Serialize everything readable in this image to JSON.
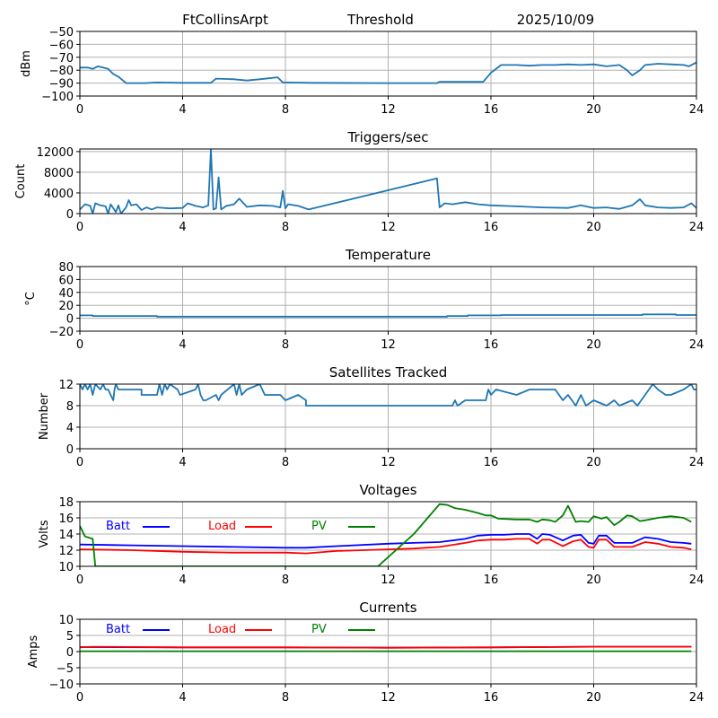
{
  "header": {
    "station": "FtCollinsArpt",
    "label": "Threshold",
    "date": "2025/10/09"
  },
  "colors": {
    "series_default": "#1f77b4",
    "batt": "#0000ff",
    "load": "#ff0000",
    "pv": "#008000",
    "grid": "#b0b0b0"
  },
  "chart_data": [
    {
      "id": "threshold",
      "type": "line",
      "title": "",
      "xlabel": "",
      "ylabel": "dBm",
      "xlim": [
        0,
        24
      ],
      "ylim": [
        -100,
        -50
      ],
      "xticks": [
        0,
        4,
        8,
        12,
        16,
        20,
        24
      ],
      "yticks": [
        -100,
        -90,
        -80,
        -70,
        -60,
        -50
      ],
      "ytick_labels": [
        "−100",
        "−90",
        "−80",
        "−70",
        "−60",
        "−50"
      ],
      "grid": true,
      "series": [
        {
          "name": "Threshold",
          "color": "#1f77b4",
          "x": [
            0,
            0.3,
            0.5,
            0.7,
            0.9,
            1.1,
            1.3,
            1.5,
            1.8,
            2.0,
            2.5,
            3.0,
            4.0,
            5.1,
            5.3,
            6.0,
            6.5,
            7.0,
            7.7,
            7.9,
            8.1,
            9.0,
            12.0,
            13.9,
            14.0,
            15.0,
            15.7,
            16.0,
            16.4,
            17.0,
            17.5,
            18.0,
            18.5,
            19.0,
            19.5,
            20.0,
            20.5,
            21.0,
            21.3,
            21.5,
            21.8,
            22.0,
            22.5,
            23.0,
            23.5,
            23.7,
            24.0
          ],
          "y": [
            -78,
            -78,
            -79,
            -77,
            -78,
            -79,
            -83,
            -85,
            -90,
            -90,
            -90,
            -89.5,
            -89.8,
            -89.8,
            -86.5,
            -87,
            -88,
            -87,
            -85.5,
            -89.5,
            -89.5,
            -89.8,
            -90,
            -90,
            -89,
            -89,
            -89,
            -82,
            -76,
            -76,
            -76.5,
            -76,
            -76,
            -75.5,
            -76,
            -75.5,
            -77,
            -76,
            -80,
            -84,
            -80,
            -76,
            -75,
            -75.5,
            -76,
            -77,
            -74
          ]
        }
      ]
    },
    {
      "id": "triggers",
      "type": "line",
      "title": "Triggers/sec",
      "xlabel": "",
      "ylabel": "Count",
      "xlim": [
        0,
        24
      ],
      "ylim": [
        0,
        12500
      ],
      "xticks": [
        0,
        4,
        8,
        12,
        16,
        20,
        24
      ],
      "yticks": [
        0,
        4000,
        8000,
        12000
      ],
      "ytick_labels": [
        "0",
        "4000",
        "8000",
        "12000"
      ],
      "grid": true,
      "series": [
        {
          "name": "Triggers",
          "color": "#1f77b4",
          "x": [
            0,
            0.2,
            0.4,
            0.5,
            0.6,
            0.8,
            1.0,
            1.1,
            1.2,
            1.4,
            1.5,
            1.6,
            1.8,
            1.9,
            2.0,
            2.2,
            2.4,
            2.6,
            2.8,
            3.0,
            3.5,
            4.0,
            4.2,
            4.5,
            4.8,
            5.0,
            5.1,
            5.2,
            5.3,
            5.4,
            5.5,
            5.7,
            6.0,
            6.2,
            6.5,
            7.0,
            7.5,
            7.8,
            7.9,
            8.0,
            8.1,
            8.5,
            8.9,
            13.9,
            14.0,
            14.2,
            14.5,
            15.0,
            15.5,
            16.0,
            17.0,
            18.0,
            19.0,
            19.5,
            20.0,
            20.5,
            21.0,
            21.5,
            21.8,
            22.0,
            22.5,
            23.0,
            23.5,
            23.8,
            24.0
          ],
          "y": [
            800,
            1800,
            1500,
            0,
            2000,
            1600,
            1400,
            0,
            1800,
            300,
            1600,
            0,
            1200,
            2600,
            1600,
            1800,
            700,
            1200,
            800,
            1200,
            1000,
            1100,
            2000,
            1500,
            1200,
            1600,
            12500,
            800,
            1000,
            7000,
            800,
            1500,
            1800,
            2900,
            1300,
            1600,
            1500,
            1200,
            4400,
            1000,
            1800,
            1500,
            800,
            6800,
            1200,
            2000,
            1800,
            2200,
            1800,
            1600,
            1400,
            1200,
            1100,
            1600,
            1100,
            1200,
            900,
            1600,
            2800,
            1600,
            1200,
            1100,
            1200,
            2000,
            1100
          ]
        }
      ]
    },
    {
      "id": "temperature",
      "type": "line",
      "title": "Temperature",
      "xlabel": "",
      "ylabel": "°C",
      "xlim": [
        0,
        24
      ],
      "ylim": [
        -20,
        80
      ],
      "xticks": [
        0,
        4,
        8,
        12,
        16,
        20,
        24
      ],
      "yticks": [
        -20,
        0,
        20,
        40,
        60,
        80
      ],
      "ytick_labels": [
        "−20",
        "0",
        "20",
        "40",
        "60",
        "80"
      ],
      "grid": true,
      "series": [
        {
          "name": "Temperature",
          "color": "#1f77b4",
          "x": [
            0,
            0.5,
            0.5,
            3.0,
            3.0,
            14.3,
            14.3,
            15.1,
            15.1,
            16.4,
            16.4,
            21.9,
            21.9,
            23.2,
            23.2,
            24.0
          ],
          "y": [
            4.5,
            4.5,
            3.5,
            3.5,
            2.5,
            2.5,
            3.5,
            3.5,
            4.5,
            4.5,
            5.0,
            5.0,
            6.0,
            6.0,
            5.0,
            5.0
          ]
        }
      ]
    },
    {
      "id": "satellites",
      "type": "line",
      "title": "Satellites Tracked",
      "xlabel": "",
      "ylabel": "Number",
      "xlim": [
        0,
        24
      ],
      "ylim": [
        0,
        12
      ],
      "xticks": [
        0,
        4,
        8,
        12,
        16,
        20,
        24
      ],
      "yticks": [
        0,
        4,
        8,
        12
      ],
      "ytick_labels": [
        "0",
        "4",
        "8",
        "12"
      ],
      "grid": true,
      "series": [
        {
          "name": "Satellites",
          "color": "#1f77b4",
          "x": [
            0,
            0.1,
            0.2,
            0.3,
            0.4,
            0.5,
            0.6,
            0.8,
            0.9,
            1.0,
            1.1,
            1.2,
            1.3,
            1.35,
            1.4,
            1.5,
            1.6,
            2.4,
            2.4,
            3.0,
            3.1,
            3.2,
            3.3,
            3.4,
            3.5,
            3.8,
            3.9,
            4.5,
            4.6,
            4.7,
            4.8,
            4.9,
            5.3,
            5.4,
            5.5,
            6.0,
            6.1,
            6.2,
            6.3,
            6.5,
            7.0,
            7.1,
            7.2,
            7.8,
            8.0,
            8.5,
            8.8,
            8.8,
            14.0,
            14.5,
            14.6,
            14.7,
            15.0,
            15.1,
            15.8,
            15.9,
            16.0,
            16.2,
            17.0,
            17.5,
            17.8,
            18.5,
            18.8,
            19.0,
            19.3,
            19.5,
            19.6,
            19.7,
            20.0,
            20.5,
            20.8,
            21.0,
            21.5,
            21.7,
            22.0,
            22.3,
            22.5,
            22.8,
            23.0,
            23.5,
            23.8,
            23.9,
            24.0
          ],
          "y": [
            12,
            11,
            12,
            11,
            12,
            10,
            12,
            11,
            12,
            11,
            11,
            10,
            9,
            11,
            12,
            11,
            11,
            11,
            10,
            10,
            12,
            10,
            12,
            11,
            12,
            11,
            10,
            11,
            12,
            10,
            9,
            9,
            10,
            9,
            10,
            12,
            10,
            12,
            10,
            11,
            12,
            11,
            10,
            10,
            9,
            10,
            9,
            8,
            8,
            8,
            9,
            8,
            9,
            9,
            9,
            11,
            10,
            11,
            10,
            11,
            11,
            11,
            9,
            10,
            8,
            10,
            9,
            8,
            9,
            8,
            9,
            8,
            9,
            8,
            10,
            12,
            11,
            10,
            10,
            11,
            12,
            11,
            11
          ]
        }
      ]
    },
    {
      "id": "voltages",
      "type": "line",
      "title": "Voltages",
      "xlabel": "",
      "ylabel": "Volts",
      "xlim": [
        0,
        24
      ],
      "ylim": [
        10,
        18
      ],
      "xticks": [
        0,
        4,
        8,
        12,
        16,
        20,
        24
      ],
      "yticks": [
        10,
        12,
        14,
        16,
        18
      ],
      "ytick_labels": [
        "10",
        "12",
        "14",
        "16",
        "18"
      ],
      "grid": true,
      "legend": "top-left, inline",
      "series": [
        {
          "name": "Batt",
          "color": "#0000ff",
          "x": [
            0,
            2,
            4,
            6,
            8,
            8.8,
            10,
            12,
            13,
            14,
            15,
            15.5,
            16,
            16.5,
            17,
            17.5,
            17.8,
            18,
            18.3,
            18.8,
            19.2,
            19.5,
            19.8,
            20.0,
            20.2,
            20.5,
            20.8,
            21.0,
            21.5,
            22,
            22.5,
            23,
            23.5,
            23.8
          ],
          "y": [
            12.7,
            12.6,
            12.5,
            12.4,
            12.3,
            12.3,
            12.5,
            12.8,
            12.9,
            13.0,
            13.4,
            13.8,
            13.9,
            13.9,
            14.0,
            14.0,
            13.4,
            14.0,
            13.9,
            13.2,
            13.8,
            13.9,
            12.9,
            12.8,
            13.8,
            13.8,
            12.9,
            12.9,
            12.9,
            13.6,
            13.4,
            13.0,
            12.9,
            12.8
          ]
        },
        {
          "name": "Load",
          "color": "#ff0000",
          "x": [
            0,
            2,
            4,
            6,
            8,
            8.8,
            10,
            12,
            13,
            14,
            15,
            15.5,
            16,
            16.5,
            17,
            17.5,
            17.8,
            18,
            18.3,
            18.8,
            19.2,
            19.5,
            19.8,
            20.0,
            20.2,
            20.5,
            20.8,
            21.0,
            21.5,
            22,
            22.5,
            23,
            23.5,
            23.8
          ],
          "y": [
            12.1,
            12.0,
            11.8,
            11.7,
            11.7,
            11.6,
            11.9,
            12.1,
            12.2,
            12.4,
            12.9,
            13.2,
            13.3,
            13.3,
            13.4,
            13.4,
            12.8,
            13.3,
            13.3,
            12.5,
            13.1,
            13.3,
            12.4,
            12.3,
            13.3,
            13.3,
            12.4,
            12.4,
            12.4,
            13.0,
            12.8,
            12.4,
            12.3,
            12.1
          ]
        },
        {
          "name": "PV",
          "color": "#008000",
          "x": [
            0,
            0.2,
            0.4,
            0.5,
            0.6,
            11.6,
            13.0,
            14.0,
            14.3,
            14.6,
            15.0,
            15.5,
            15.8,
            16.0,
            16.3,
            17.0,
            17.5,
            17.8,
            18.0,
            18.3,
            18.5,
            18.8,
            19.0,
            19.3,
            19.5,
            19.8,
            20.0,
            20.3,
            20.5,
            20.8,
            21.0,
            21.3,
            21.5,
            21.8,
            22.0,
            22.5,
            23.0,
            23.5,
            23.8
          ],
          "y": [
            15.0,
            13.7,
            13.5,
            13.4,
            10.0,
            10.0,
            14.0,
            17.7,
            17.6,
            17.2,
            17.0,
            16.6,
            16.3,
            16.3,
            15.9,
            15.8,
            15.8,
            15.5,
            15.8,
            15.7,
            15.5,
            16.3,
            17.5,
            15.5,
            15.6,
            15.5,
            16.2,
            15.9,
            16.1,
            15.1,
            15.5,
            16.3,
            16.2,
            15.6,
            15.7,
            16.0,
            16.2,
            16.0,
            15.5
          ]
        }
      ]
    },
    {
      "id": "currents",
      "type": "line",
      "title": "Currents",
      "xlabel": "",
      "ylabel": "Amps",
      "xlim": [
        0,
        24
      ],
      "ylim": [
        -10,
        10
      ],
      "xticks": [
        0,
        4,
        8,
        12,
        16,
        20,
        24
      ],
      "yticks": [
        -10,
        -5,
        0,
        5,
        10
      ],
      "ytick_labels": [
        "−10",
        "−5",
        "0",
        "5",
        "10"
      ],
      "grid": true,
      "legend": "top-left, inline",
      "series": [
        {
          "name": "Batt",
          "color": "#0000ff",
          "x": [
            0,
            4,
            8,
            12,
            16,
            20,
            23.8
          ],
          "y": [
            1.4,
            1.3,
            1.3,
            1.2,
            1.3,
            1.5,
            1.5
          ]
        },
        {
          "name": "Load",
          "color": "#ff0000",
          "x": [
            0,
            0.5,
            4,
            8,
            12,
            16,
            20,
            23.8
          ],
          "y": [
            1.3,
            1.5,
            1.3,
            1.3,
            1.2,
            1.3,
            1.5,
            1.5
          ]
        },
        {
          "name": "PV",
          "color": "#008000",
          "x": [
            0,
            23.8
          ],
          "y": [
            0.1,
            0.1
          ]
        }
      ]
    }
  ]
}
